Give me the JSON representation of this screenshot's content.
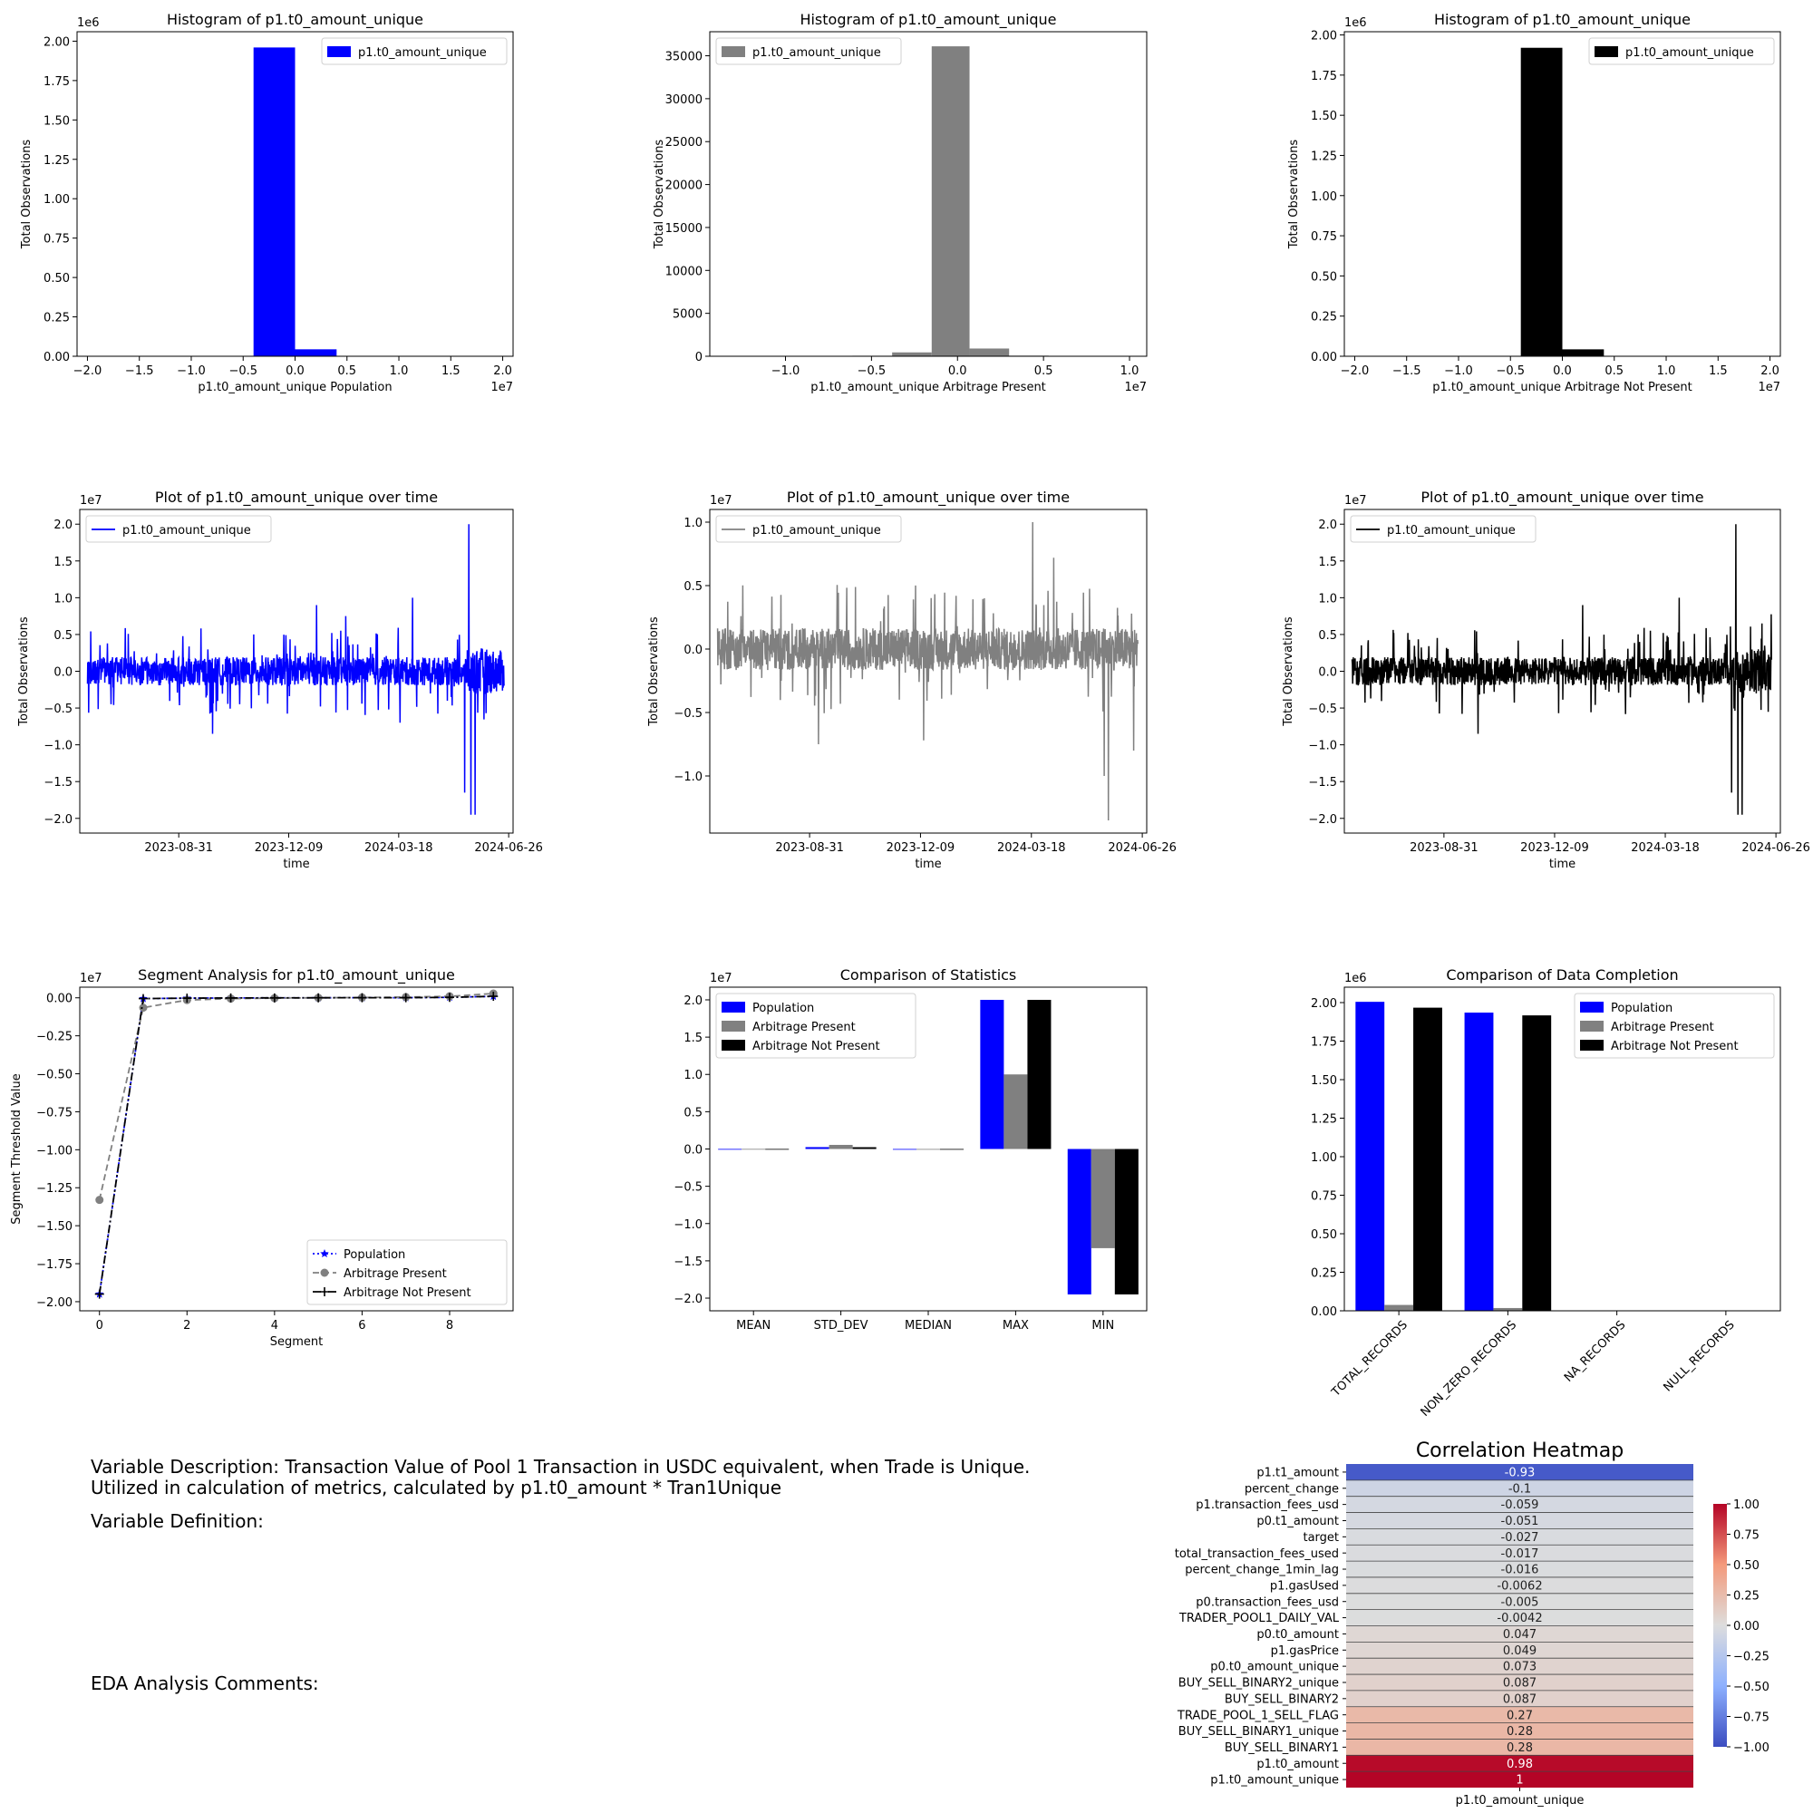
{
  "chart_data": [
    {
      "type": "bar",
      "title": "Histogram of p1.t0_amount_unique",
      "xlabel": "p1.t0_amount_unique Population",
      "ylabel": "Total Observations",
      "xlim": [
        -2.1,
        2.1
      ],
      "ylim": [
        0,
        2.06
      ],
      "x_ticks": [
        -2.0,
        -1.5,
        -1.0,
        -0.5,
        0.0,
        0.5,
        1.0,
        1.5,
        2.0
      ],
      "x_tick_labels": [
        "−2.0",
        "−1.5",
        "−1.0",
        "−0.5",
        "0.0",
        "0.5",
        "1.0",
        "1.5",
        "2.0"
      ],
      "y_ticks": [
        0,
        0.25,
        0.5,
        0.75,
        1.0,
        1.25,
        1.5,
        1.75,
        2.0
      ],
      "y_tick_labels": [
        "0.00",
        "0.25",
        "0.50",
        "0.75",
        "1.00",
        "1.25",
        "1.50",
        "1.75",
        "2.00"
      ],
      "x_offset": "1e7",
      "y_offset": "1e6",
      "legend": [
        "p1.t0_amount_unique"
      ],
      "legend_pos": "top-right",
      "color": "#0000ff",
      "bins": [
        [
          -0.4,
          0.0,
          1.96
        ],
        [
          0.0,
          0.4,
          0.044
        ],
        [
          0.4,
          0.8,
          0.001
        ]
      ]
    },
    {
      "type": "bar",
      "title": "Histogram of p1.t0_amount_unique",
      "xlabel": "p1.t0_amount_unique Arbitrage Present",
      "ylabel": "Total Observations",
      "xlim": [
        -1.44,
        1.1
      ],
      "ylim": [
        0,
        37800
      ],
      "x_ticks": [
        -1.0,
        -0.5,
        0.0,
        0.5,
        1.0
      ],
      "x_tick_labels": [
        "−1.0",
        "−0.5",
        "0.0",
        "0.5",
        "1.0"
      ],
      "y_ticks": [
        0,
        5000,
        10000,
        15000,
        20000,
        25000,
        30000,
        35000
      ],
      "y_tick_labels": [
        "0",
        "5000",
        "10000",
        "15000",
        "20000",
        "25000",
        "30000",
        "35000"
      ],
      "x_offset": "1e7",
      "y_offset": "",
      "legend": [
        "p1.t0_amount_unique"
      ],
      "legend_pos": "top-left",
      "color": "#808080",
      "bins": [
        [
          -0.61,
          -0.38,
          60
        ],
        [
          -0.38,
          -0.15,
          450
        ],
        [
          -0.15,
          0.07,
          36100
        ],
        [
          0.07,
          0.3,
          900
        ],
        [
          0.3,
          0.53,
          70
        ]
      ]
    },
    {
      "type": "bar",
      "title": "Histogram of p1.t0_amount_unique",
      "xlabel": "p1.t0_amount_unique Arbitrage Not Present",
      "ylabel": "Total Observations",
      "xlim": [
        -2.1,
        2.1
      ],
      "ylim": [
        0,
        2.02
      ],
      "x_ticks": [
        -2.0,
        -1.5,
        -1.0,
        -0.5,
        0.0,
        0.5,
        1.0,
        1.5,
        2.0
      ],
      "x_tick_labels": [
        "−2.0",
        "−1.5",
        "−1.0",
        "−0.5",
        "0.0",
        "0.5",
        "1.0",
        "1.5",
        "2.0"
      ],
      "y_ticks": [
        0,
        0.25,
        0.5,
        0.75,
        1.0,
        1.25,
        1.5,
        1.75,
        2.0
      ],
      "y_tick_labels": [
        "0.00",
        "0.25",
        "0.50",
        "0.75",
        "1.00",
        "1.25",
        "1.50",
        "1.75",
        "2.00"
      ],
      "x_offset": "1e7",
      "y_offset": "1e6",
      "legend": [
        "p1.t0_amount_unique"
      ],
      "legend_pos": "top-right",
      "color": "#000000",
      "bins": [
        [
          -0.4,
          0.0,
          1.92
        ],
        [
          0.0,
          0.4,
          0.043
        ],
        [
          0.4,
          0.8,
          0.001
        ]
      ]
    },
    {
      "type": "line",
      "title": "Plot of p1.t0_amount_unique over time",
      "xlabel": "time",
      "ylabel": "Total Observations",
      "xlim": [
        "2023-06-02",
        "2024-06-30"
      ],
      "ylim": [
        -2.2,
        2.2
      ],
      "x_tick_labels": [
        "2023-08-31",
        "2023-12-09",
        "2024-03-18",
        "2024-06-26"
      ],
      "y_ticks": [
        -2.0,
        -1.5,
        -1.0,
        -0.5,
        0.0,
        0.5,
        1.0,
        1.5,
        2.0
      ],
      "y_tick_labels": [
        "−2.0",
        "−1.5",
        "−1.0",
        "−0.5",
        "0.0",
        "0.5",
        "1.0",
        "1.5",
        "2.0"
      ],
      "y_offset": "1e7",
      "legend": [
        "p1.t0_amount_unique"
      ],
      "legend_pos": "top-left",
      "color": "#0000ff",
      "x_start": "2023-06-09",
      "x_end": "2024-06-22",
      "values_note": "dense series; y in 1e7 units",
      "profile": [
        [
          0.0,
          0.35
        ],
        [
          0.9,
          0.35
        ],
        [
          0.93,
          0.6
        ],
        [
          1.0,
          0.5
        ]
      ],
      "extremes": [
        [
          0.915,
          2.0
        ],
        [
          0.92,
          -1.95
        ],
        [
          0.905,
          -1.65
        ],
        [
          0.93,
          -1.95
        ],
        [
          0.78,
          1.0
        ],
        [
          0.75,
          -0.7
        ],
        [
          0.3,
          -0.85
        ],
        [
          0.55,
          0.9
        ],
        [
          0.62,
          0.75
        ]
      ]
    },
    {
      "type": "line",
      "title": "Plot of p1.t0_amount_unique over time",
      "xlabel": "time",
      "ylabel": "Total Observations",
      "xlim": [
        "2023-06-02",
        "2024-06-30"
      ],
      "ylim": [
        -1.45,
        1.1
      ],
      "x_tick_labels": [
        "2023-08-31",
        "2023-12-09",
        "2024-03-18",
        "2024-06-26"
      ],
      "y_ticks": [
        -1.0,
        -0.5,
        0.0,
        0.5,
        1.0
      ],
      "y_tick_labels": [
        "−1.0",
        "−0.5",
        "0.0",
        "0.5",
        "1.0"
      ],
      "y_offset": "1e7",
      "legend": [
        "p1.t0_amount_unique"
      ],
      "legend_pos": "top-left",
      "color": "#808080",
      "x_start": "2023-06-09",
      "x_end": "2024-06-22",
      "values_note": "dense series; y in 1e7 units",
      "profile": [
        [
          0.0,
          0.3
        ],
        [
          1.0,
          0.3
        ]
      ],
      "extremes": [
        [
          0.75,
          1.0
        ],
        [
          0.93,
          -1.35
        ],
        [
          0.92,
          -1.0
        ],
        [
          0.24,
          -0.75
        ],
        [
          0.49,
          -0.72
        ],
        [
          0.8,
          0.72
        ],
        [
          0.99,
          -0.8
        ]
      ]
    },
    {
      "type": "line",
      "title": "Plot of p1.t0_amount_unique over time",
      "xlabel": "time",
      "ylabel": "Total Observations",
      "xlim": [
        "2023-06-02",
        "2024-06-30"
      ],
      "ylim": [
        -2.2,
        2.2
      ],
      "x_tick_labels": [
        "2023-08-31",
        "2023-12-09",
        "2024-03-18",
        "2024-06-26"
      ],
      "y_ticks": [
        -2.0,
        -1.5,
        -1.0,
        -0.5,
        0.0,
        0.5,
        1.0,
        1.5,
        2.0
      ],
      "y_tick_labels": [
        "−2.0",
        "−1.5",
        "−1.0",
        "−0.5",
        "0.0",
        "0.5",
        "1.0",
        "1.5",
        "2.0"
      ],
      "y_offset": "1e7",
      "legend": [
        "p1.t0_amount_unique"
      ],
      "legend_pos": "top-left",
      "color": "#000000",
      "x_start": "2023-06-09",
      "x_end": "2024-06-22",
      "values_note": "dense series; y in 1e7 units",
      "profile": [
        [
          0.0,
          0.35
        ],
        [
          0.9,
          0.35
        ],
        [
          0.93,
          0.6
        ],
        [
          1.0,
          0.5
        ]
      ],
      "extremes": [
        [
          0.915,
          2.0
        ],
        [
          0.92,
          -1.95
        ],
        [
          0.905,
          -1.65
        ],
        [
          0.93,
          -1.95
        ],
        [
          0.78,
          1.0
        ],
        [
          0.3,
          -0.85
        ],
        [
          0.55,
          0.9
        ]
      ]
    },
    {
      "type": "line",
      "title": "Segment Analysis for p1.t0_amount_unique",
      "xlabel": "Segment",
      "ylabel": "Segment Threshold Value",
      "xlim": [
        -0.45,
        9.45
      ],
      "ylim": [
        -2.06,
        0.07
      ],
      "x_ticks": [
        0,
        2,
        4,
        6,
        8
      ],
      "x_tick_labels": [
        "0",
        "2",
        "4",
        "6",
        "8"
      ],
      "y_ticks": [
        0.0,
        -0.25,
        -0.5,
        -0.75,
        -1.0,
        -1.25,
        -1.5,
        -1.75,
        -2.0
      ],
      "y_tick_labels": [
        "0.00",
        "−0.25",
        "−0.50",
        "−0.75",
        "−1.00",
        "−1.25",
        "−1.50",
        "−1.75",
        "−2.00"
      ],
      "y_offset": "1e7",
      "legend_pos": "lower-right",
      "x": [
        0,
        1,
        2,
        3,
        4,
        5,
        6,
        7,
        8,
        9
      ],
      "series": [
        {
          "name": "Population",
          "color": "#0000ff",
          "dash": "2,3",
          "marker": "star",
          "values": [
            -1.95,
            -0.005,
            -0.002,
            -0.001,
            -0.0005,
            0.0,
            0.0005,
            0.001,
            0.003,
            0.01
          ]
        },
        {
          "name": "Arbitrage Present",
          "color": "#808080",
          "dash": "7,4",
          "marker": "circle",
          "values": [
            -1.33,
            -0.065,
            -0.015,
            -0.005,
            -0.002,
            0.0,
            0.002,
            0.005,
            0.01,
            0.028
          ]
        },
        {
          "name": "Arbitrage Not Present",
          "color": "#000000",
          "dash": "9,3,2,3",
          "marker": "plus",
          "values": [
            -1.95,
            -0.005,
            -0.002,
            -0.001,
            -0.0005,
            0.0,
            0.0005,
            0.001,
            0.003,
            0.01
          ]
        }
      ]
    },
    {
      "type": "bar",
      "title": "Comparison of Statistics",
      "xlabel": "",
      "ylabel": "",
      "ylim": [
        -2.17,
        2.17
      ],
      "categories": [
        "MEAN",
        "STD_DEV",
        "MEDIAN",
        "MAX",
        "MIN"
      ],
      "y_ticks": [
        -2.0,
        -1.5,
        -1.0,
        -0.5,
        0.0,
        0.5,
        1.0,
        1.5,
        2.0
      ],
      "y_tick_labels": [
        "−2.0",
        "−1.5",
        "−1.0",
        "−0.5",
        "0.0",
        "0.5",
        "1.0",
        "1.5",
        "2.0"
      ],
      "y_offset": "1e7",
      "legend_pos": "top-left",
      "series": [
        {
          "name": "Population",
          "color": "#0000ff",
          "values": [
            0.0005,
            0.025,
            0.0,
            2.0,
            -1.95
          ]
        },
        {
          "name": "Arbitrage Present",
          "color": "#808080",
          "values": [
            0.001,
            0.055,
            0.0,
            1.0,
            -1.33
          ]
        },
        {
          "name": "Arbitrage Not Present",
          "color": "#000000",
          "values": [
            0.0005,
            0.024,
            0.0,
            2.0,
            -1.95
          ]
        }
      ]
    },
    {
      "type": "bar",
      "title": "Comparison of Data Completion",
      "xlabel": "",
      "ylabel": "",
      "ylim": [
        0,
        2.1
      ],
      "categories": [
        "TOTAL_RECORDS",
        "NON_ZERO_RECORDS",
        "NA_RECORDS",
        "NULL_RECORDS"
      ],
      "y_ticks": [
        0,
        0.25,
        0.5,
        0.75,
        1.0,
        1.25,
        1.5,
        1.75,
        2.0
      ],
      "y_tick_labels": [
        "0.00",
        "0.25",
        "0.50",
        "0.75",
        "1.00",
        "1.25",
        "1.50",
        "1.75",
        "2.00"
      ],
      "y_offset": "1e6",
      "legend_pos": "top-right",
      "series": [
        {
          "name": "Population",
          "color": "#0000ff",
          "values": [
            2.005,
            1.935,
            0,
            0
          ]
        },
        {
          "name": "Arbitrage Present",
          "color": "#808080",
          "values": [
            0.038,
            0.018,
            0,
            0
          ]
        },
        {
          "name": "Arbitrage Not Present",
          "color": "#000000",
          "values": [
            1.967,
            1.917,
            0,
            0
          ]
        }
      ]
    },
    {
      "type": "heatmap",
      "title": "Correlation Heatmap",
      "xlabel": "p1.t0_amount_unique",
      "colorbar_ticks": [
        1.0,
        0.75,
        0.5,
        0.25,
        0.0,
        -0.25,
        -0.5,
        -0.75,
        -1.0
      ],
      "colorbar_tick_labels": [
        "1.00",
        "0.75",
        "0.50",
        "0.25",
        "0.00",
        "−0.25",
        "−0.50",
        "−0.75",
        "−1.00"
      ],
      "rows": [
        {
          "label": "p1.t1_amount",
          "value": -0.93,
          "text": "-0.93"
        },
        {
          "label": "percent_change",
          "value": -0.1,
          "text": "-0.1"
        },
        {
          "label": "p1.transaction_fees_usd",
          "value": -0.059,
          "text": "-0.059"
        },
        {
          "label": "p0.t1_amount",
          "value": -0.051,
          "text": "-0.051"
        },
        {
          "label": "target",
          "value": -0.027,
          "text": "-0.027"
        },
        {
          "label": "total_transaction_fees_used",
          "value": -0.017,
          "text": "-0.017"
        },
        {
          "label": "percent_change_1min_lag",
          "value": -0.016,
          "text": "-0.016"
        },
        {
          "label": "p1.gasUsed",
          "value": -0.0062,
          "text": "-0.0062"
        },
        {
          "label": "p0.transaction_fees_usd",
          "value": -0.005,
          "text": "-0.005"
        },
        {
          "label": "TRADER_POOL1_DAILY_VAL",
          "value": -0.0042,
          "text": "-0.0042"
        },
        {
          "label": "p0.t0_amount",
          "value": 0.047,
          "text": "0.047"
        },
        {
          "label": "p1.gasPrice",
          "value": 0.049,
          "text": "0.049"
        },
        {
          "label": "p0.t0_amount_unique",
          "value": 0.073,
          "text": "0.073"
        },
        {
          "label": "BUY_SELL_BINARY2_unique",
          "value": 0.087,
          "text": "0.087"
        },
        {
          "label": "BUY_SELL_BINARY2",
          "value": 0.087,
          "text": "0.087"
        },
        {
          "label": "TRADE_POOL_1_SELL_FLAG",
          "value": 0.27,
          "text": "0.27"
        },
        {
          "label": "BUY_SELL_BINARY1_unique",
          "value": 0.28,
          "text": "0.28"
        },
        {
          "label": "BUY_SELL_BINARY1",
          "value": 0.28,
          "text": "0.28"
        },
        {
          "label": "p1.t0_amount",
          "value": 0.98,
          "text": "0.98"
        },
        {
          "label": "p1.t0_amount_unique",
          "value": 1.0,
          "text": "1"
        }
      ]
    }
  ],
  "notes": {
    "description_line1": "Variable Description: Transaction Value of Pool 1 Transaction in USDC equivalent, when Trade is Unique.",
    "description_line2": "Utilized in calculation of metrics, calculated by p1.t0_amount * Tran1Unique",
    "definition": "Variable Definition:",
    "comments": "EDA Analysis Comments:"
  }
}
